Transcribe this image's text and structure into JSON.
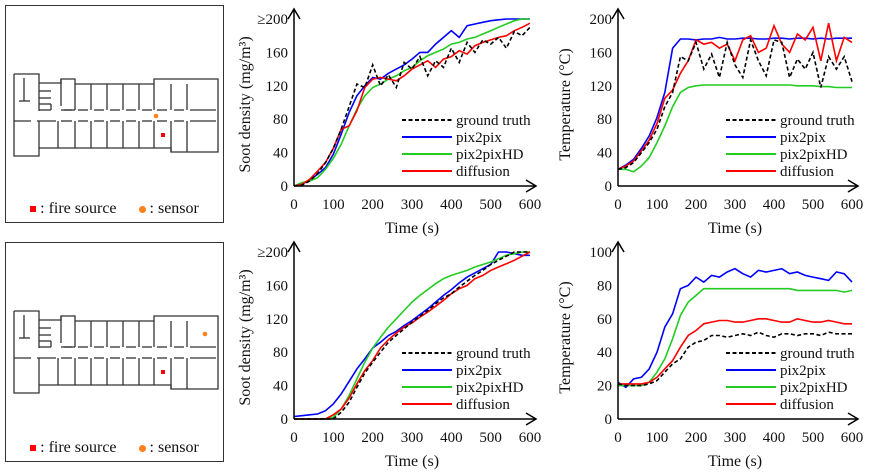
{
  "map_panels": [
    {
      "legend": {
        "fire_source_label": ": fire source",
        "sensor_label": ": sensor"
      },
      "sensor_position": "corridor-near-fire"
    },
    {
      "legend": {
        "fire_source_label": ": fire source",
        "sensor_label": ": sensor"
      },
      "sensor_position": "east-room"
    }
  ],
  "colors": {
    "ground_truth": "#000000",
    "pix2pix": "#0000ff",
    "pix2pixHD": "#22cc22",
    "diffusion": "#ff0000",
    "fire_source": "#ff0000",
    "sensor": "#ff7f1a"
  },
  "chart_data": [
    {
      "id": "soot-top",
      "type": "line",
      "title": "",
      "xlabel": "Time (s)",
      "ylabel": "Soot density (mg/m³)",
      "xlim": [
        0,
        600
      ],
      "ylim": [
        0,
        200
      ],
      "xticks": [
        "0",
        "100",
        "200",
        "300",
        "400",
        "500",
        "600"
      ],
      "yticks": [
        "0",
        "40",
        "80",
        "120",
        "160",
        "≥200"
      ],
      "legend_position": "bottom-right",
      "x": [
        0,
        20,
        40,
        60,
        80,
        100,
        120,
        140,
        160,
        180,
        200,
        220,
        240,
        260,
        280,
        300,
        320,
        340,
        360,
        380,
        400,
        420,
        440,
        460,
        480,
        500,
        520,
        540,
        560,
        580,
        600
      ],
      "series": [
        {
          "name": "ground truth",
          "style": "dashed",
          "values": [
            0,
            1,
            6,
            15,
            28,
            45,
            68,
            95,
            122,
            118,
            145,
            120,
            133,
            118,
            148,
            140,
            155,
            132,
            150,
            142,
            165,
            148,
            172,
            160,
            175,
            170,
            178,
            165,
            185,
            180,
            190
          ]
        },
        {
          "name": "pix2pix",
          "style": "solid",
          "values": [
            0,
            2,
            7,
            14,
            22,
            38,
            62,
            88,
            108,
            120,
            130,
            128,
            135,
            140,
            145,
            152,
            160,
            160,
            170,
            178,
            186,
            178,
            192,
            194,
            196,
            198,
            199,
            200,
            200,
            200,
            200
          ]
        },
        {
          "name": "pix2pixHD",
          "style": "solid",
          "values": [
            0,
            4,
            6,
            10,
            20,
            33,
            50,
            72,
            92,
            108,
            118,
            122,
            128,
            132,
            138,
            142,
            150,
            156,
            160,
            164,
            170,
            172,
            176,
            178,
            182,
            186,
            190,
            194,
            198,
            200,
            200
          ]
        },
        {
          "name": "diffusion",
          "style": "solid",
          "values": [
            0,
            2,
            8,
            18,
            28,
            45,
            68,
            72,
            90,
            118,
            128,
            130,
            128,
            126,
            132,
            140,
            145,
            150,
            142,
            152,
            155,
            162,
            158,
            168,
            172,
            175,
            178,
            180,
            186,
            190,
            195
          ]
        }
      ]
    },
    {
      "id": "temp-top",
      "type": "line",
      "title": "",
      "xlabel": "Time (s)",
      "ylabel": "Temperature (°C)",
      "xlim": [
        0,
        600
      ],
      "ylim": [
        0,
        200
      ],
      "xticks": [
        "0",
        "100",
        "200",
        "300",
        "400",
        "500",
        "600"
      ],
      "yticks": [
        "0",
        "40",
        "80",
        "120",
        "160",
        "200"
      ],
      "legend_position": "bottom-right",
      "x": [
        0,
        20,
        40,
        60,
        80,
        100,
        120,
        140,
        160,
        180,
        200,
        220,
        240,
        260,
        280,
        300,
        320,
        340,
        360,
        380,
        400,
        420,
        440,
        460,
        480,
        500,
        520,
        540,
        560,
        580,
        600
      ],
      "series": [
        {
          "name": "ground truth",
          "style": "dashed",
          "values": [
            20,
            22,
            28,
            40,
            52,
            68,
            95,
            112,
            155,
            150,
            172,
            140,
            158,
            130,
            172,
            145,
            130,
            175,
            150,
            132,
            175,
            172,
            130,
            152,
            140,
            160,
            118,
            155,
            140,
            155,
            125
          ]
        },
        {
          "name": "pix2pix",
          "style": "solid",
          "values": [
            20,
            25,
            32,
            45,
            60,
            82,
            112,
            165,
            176,
            176,
            175,
            176,
            176,
            178,
            176,
            176,
            177,
            177,
            176,
            176,
            177,
            177,
            176,
            177,
            177,
            176,
            177,
            176,
            177,
            177,
            177
          ]
        },
        {
          "name": "pix2pixHD",
          "style": "solid",
          "values": [
            20,
            20,
            17,
            24,
            34,
            52,
            72,
            95,
            112,
            118,
            120,
            121,
            121,
            121,
            121,
            121,
            121,
            121,
            121,
            121,
            121,
            121,
            121,
            120,
            120,
            120,
            119,
            119,
            118,
            118,
            118
          ]
        },
        {
          "name": "diffusion",
          "style": "solid",
          "values": [
            20,
            24,
            30,
            42,
            55,
            75,
            105,
            115,
            135,
            150,
            175,
            170,
            172,
            165,
            170,
            150,
            175,
            180,
            160,
            165,
            192,
            170,
            160,
            182,
            175,
            190,
            150,
            195,
            150,
            178,
            172
          ]
        }
      ]
    },
    {
      "id": "soot-bottom",
      "type": "line",
      "title": "",
      "xlabel": "Time (s)",
      "ylabel": "Soot density (mg/m³)",
      "xlim": [
        0,
        600
      ],
      "ylim": [
        0,
        200
      ],
      "xticks": [
        "0",
        "100",
        "200",
        "300",
        "400",
        "500",
        "600"
      ],
      "yticks": [
        "0",
        "40",
        "80",
        "120",
        "160",
        "≥200"
      ],
      "legend_position": "bottom-right",
      "x": [
        0,
        20,
        40,
        60,
        80,
        100,
        120,
        140,
        160,
        180,
        200,
        220,
        240,
        260,
        280,
        300,
        320,
        340,
        360,
        380,
        400,
        420,
        440,
        460,
        480,
        500,
        520,
        540,
        560,
        580,
        600
      ],
      "series": [
        {
          "name": "ground truth",
          "style": "dashed",
          "values": [
            0,
            0,
            0,
            0,
            0,
            0,
            8,
            20,
            38,
            55,
            68,
            80,
            92,
            100,
            108,
            116,
            123,
            130,
            138,
            145,
            150,
            158,
            165,
            172,
            178,
            185,
            190,
            195,
            200,
            200,
            200
          ]
        },
        {
          "name": "pix2pix",
          "style": "solid",
          "values": [
            3,
            4,
            5,
            6,
            10,
            18,
            30,
            45,
            60,
            72,
            85,
            92,
            100,
            105,
            112,
            118,
            125,
            132,
            140,
            148,
            155,
            163,
            170,
            175,
            180,
            185,
            200,
            200,
            198,
            196,
            196
          ]
        },
        {
          "name": "pix2pixHD",
          "style": "solid",
          "values": [
            0,
            0,
            0,
            0,
            0,
            2,
            12,
            28,
            48,
            68,
            85,
            98,
            110,
            120,
            130,
            140,
            148,
            155,
            162,
            168,
            172,
            175,
            178,
            182,
            185,
            188,
            192,
            196,
            198,
            200,
            200
          ]
        },
        {
          "name": "diffusion",
          "style": "solid",
          "values": [
            0,
            0,
            0,
            0,
            0,
            5,
            12,
            25,
            42,
            58,
            70,
            85,
            95,
            103,
            110,
            115,
            122,
            128,
            135,
            142,
            150,
            156,
            160,
            168,
            172,
            178,
            182,
            186,
            190,
            195,
            200
          ]
        }
      ]
    },
    {
      "id": "temp-bottom",
      "type": "line",
      "title": "",
      "xlabel": "Time (s)",
      "ylabel": "Temperature (°C)",
      "xlim": [
        0,
        600
      ],
      "ylim": [
        0,
        100
      ],
      "xticks": [
        "0",
        "100",
        "200",
        "300",
        "400",
        "500",
        "600"
      ],
      "yticks": [
        "0",
        "20",
        "40",
        "60",
        "80",
        "100"
      ],
      "legend_position": "bottom-right",
      "x": [
        0,
        20,
        40,
        60,
        80,
        100,
        120,
        140,
        160,
        180,
        200,
        220,
        240,
        260,
        280,
        300,
        320,
        340,
        360,
        380,
        400,
        420,
        440,
        460,
        480,
        500,
        520,
        540,
        560,
        580,
        600
      ],
      "series": [
        {
          "name": "ground truth",
          "style": "dashed",
          "values": [
            21,
            20,
            20,
            20,
            21,
            23,
            28,
            33,
            36,
            43,
            46,
            47,
            50,
            50,
            49,
            50,
            51,
            50,
            52,
            50,
            49,
            51,
            51,
            50,
            51,
            51,
            50,
            52,
            51,
            51,
            51
          ]
        },
        {
          "name": "pix2pix",
          "style": "solid",
          "values": [
            22,
            19,
            24,
            25,
            30,
            40,
            55,
            63,
            78,
            80,
            85,
            82,
            86,
            85,
            88,
            90,
            87,
            85,
            89,
            88,
            89,
            90,
            87,
            88,
            86,
            85,
            84,
            83,
            88,
            87,
            82
          ]
        },
        {
          "name": "pix2pixHD",
          "style": "solid",
          "values": [
            20,
            20,
            20,
            20,
            22,
            28,
            36,
            48,
            62,
            70,
            74,
            78,
            78,
            78,
            78,
            78,
            78,
            78,
            78,
            78,
            78,
            78,
            78,
            77,
            77,
            77,
            77,
            77,
            77,
            76,
            77
          ]
        },
        {
          "name": "diffusion",
          "style": "solid",
          "values": [
            21,
            21,
            21,
            21,
            22,
            25,
            30,
            35,
            43,
            50,
            53,
            57,
            58,
            59,
            59,
            58,
            58,
            59,
            60,
            60,
            59,
            58,
            58,
            60,
            59,
            58,
            58,
            59,
            58,
            57,
            57
          ]
        }
      ]
    }
  ]
}
